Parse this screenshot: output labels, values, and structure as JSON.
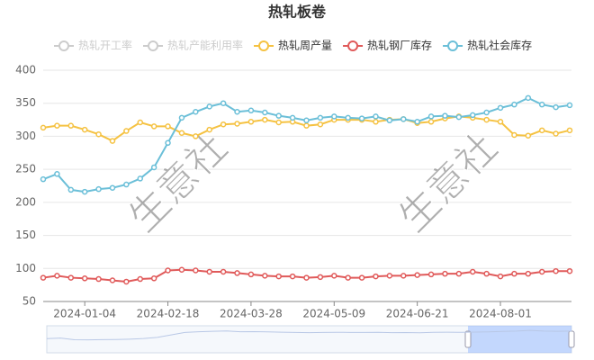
{
  "chart_data": {
    "type": "line",
    "title": "热轧板卷",
    "inactive_legend": [
      {
        "name": "热轧开工率"
      },
      {
        "name": "热轧产能利用率"
      }
    ],
    "inactive_color": "#cccccc",
    "categories": [
      null,
      null,
      null,
      "2024-01-04",
      null,
      null,
      null,
      null,
      null,
      "2024-02-18",
      null,
      null,
      null,
      null,
      null,
      "2024-03-28",
      null,
      null,
      null,
      null,
      null,
      "2024-05-09",
      null,
      null,
      null,
      null,
      null,
      "2024-06-21",
      null,
      null,
      null,
      null,
      null,
      "2024-08-01",
      null,
      null,
      null,
      null,
      null
    ],
    "series": [
      {
        "name": "热轧周产量",
        "color": "#f5c242",
        "values": [
          313,
          316,
          316,
          310,
          303,
          293,
          308,
          321,
          315,
          315,
          305,
          300,
          310,
          318,
          319,
          322,
          325,
          321,
          322,
          316,
          318,
          325,
          325,
          325,
          322,
          325,
          326,
          320,
          322,
          327,
          330,
          328,
          325,
          322,
          302,
          301,
          309,
          304,
          309
        ]
      },
      {
        "name": "热轧钢厂库存",
        "color": "#e05a5a",
        "values": [
          86,
          89,
          86,
          85,
          84,
          82,
          80,
          84,
          85,
          97,
          98,
          97,
          95,
          95,
          93,
          91,
          89,
          88,
          88,
          86,
          87,
          89,
          86,
          86,
          88,
          89,
          89,
          90,
          91,
          92,
          92,
          95,
          92,
          88,
          92,
          92,
          95,
          96,
          96
        ]
      },
      {
        "name": "热轧社会库存",
        "color": "#6bbfd8",
        "values": [
          235,
          243,
          219,
          216,
          220,
          222,
          227,
          236,
          253,
          290,
          328,
          337,
          345,
          350,
          337,
          339,
          336,
          331,
          328,
          324,
          328,
          330,
          328,
          327,
          330,
          324,
          326,
          322,
          330,
          331,
          329,
          332,
          336,
          343,
          348,
          358,
          348,
          344,
          347
        ]
      }
    ],
    "ylim": [
      50,
      400
    ],
    "yticks": [
      50,
      100,
      150,
      200,
      250,
      300,
      350,
      400
    ],
    "grid": true,
    "annotations": [
      "生意社",
      "生意社"
    ]
  }
}
